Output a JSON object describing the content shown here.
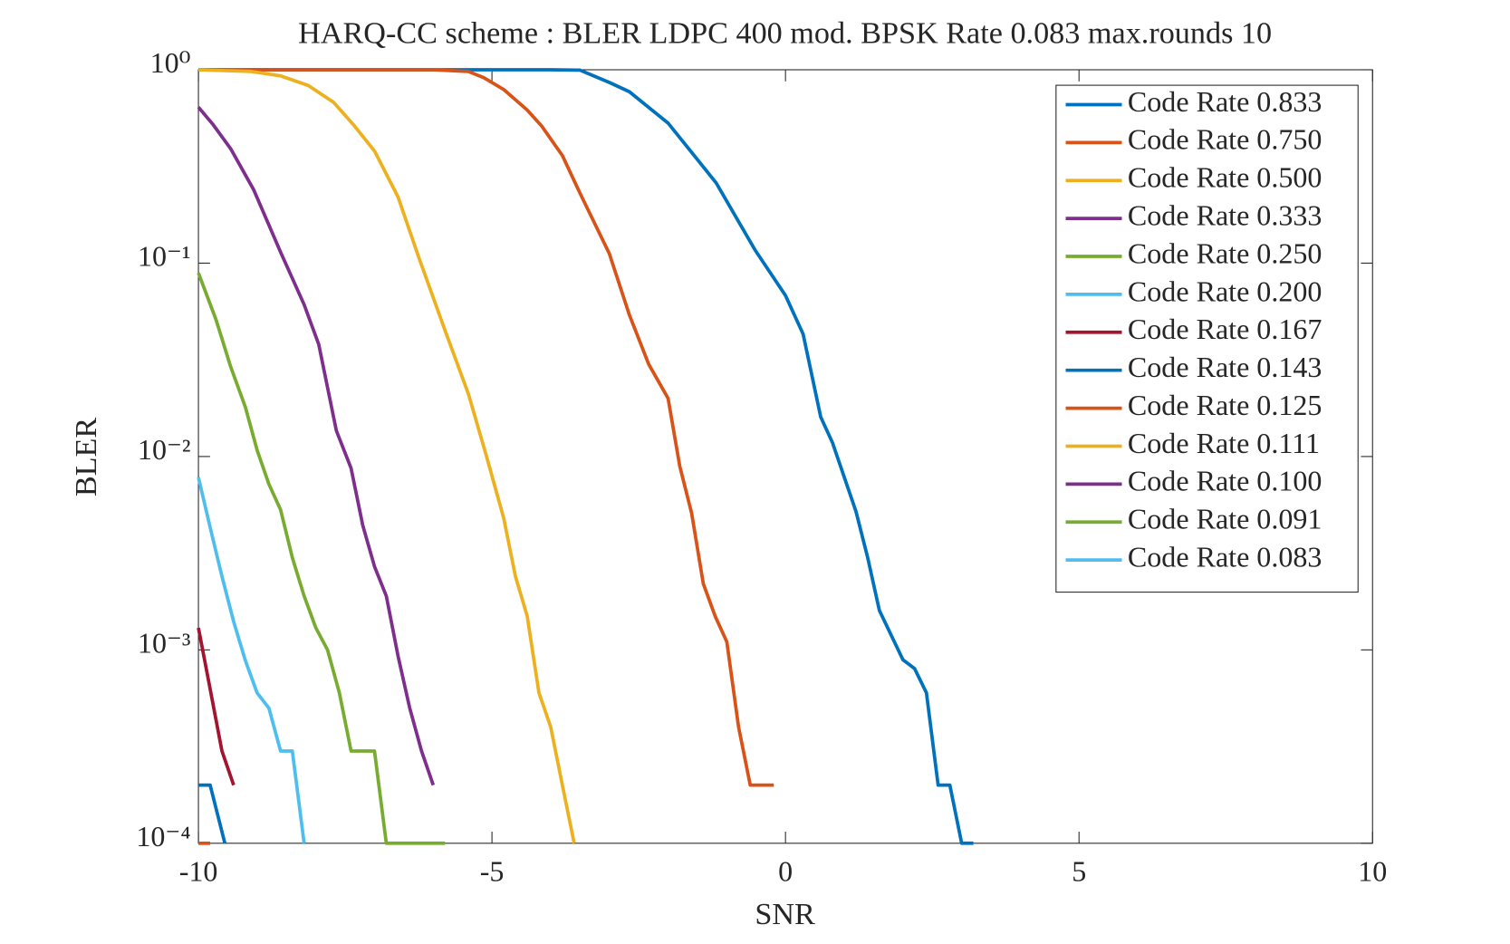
{
  "chart_data": {
    "type": "line",
    "title": "HARQ-CC scheme : BLER LDPC 400 mod. BPSK Rate 0.083 max.rounds 10",
    "xlabel": "SNR",
    "ylabel": "BLER",
    "xlim": [
      -10,
      10
    ],
    "xticks": [
      -10,
      -5,
      0,
      5,
      10
    ],
    "ylim": [
      0.0001,
      1
    ],
    "yscale": "log",
    "yticks": [
      {
        "value": 1,
        "label": "10⁰"
      },
      {
        "value": 0.1,
        "label": "10⁻¹"
      },
      {
        "value": 0.01,
        "label": "10⁻²"
      },
      {
        "value": 0.001,
        "label": "10⁻³"
      },
      {
        "value": 0.0001,
        "label": "10⁻⁴"
      }
    ],
    "legend": "upper right",
    "series": [
      {
        "name": "Code Rate 0.833",
        "color": "#0072bd",
        "x": [
          -10,
          -4,
          -3.5,
          -3.0,
          -2.66,
          -2.0,
          -1.18,
          -0.52,
          0,
          0.3,
          0.6,
          0.8,
          1.2,
          1.4,
          1.6,
          2.0,
          2.2,
          2.4,
          2.6,
          2.8,
          3.0,
          3.2
        ],
        "values": [
          1,
          1,
          0.995,
          0.86,
          0.77,
          0.53,
          0.26,
          0.117,
          0.068,
          0.043,
          0.016,
          0.0118,
          0.0052,
          0.003,
          0.0016,
          0.00089,
          0.0008,
          0.0006,
          0.0002,
          0.0002,
          0.0001,
          0.0001
        ]
      },
      {
        "name": "Code Rate 0.750",
        "color": "#d95319",
        "x": [
          -10,
          -6,
          -5.4,
          -5.14,
          -4.8,
          -4.4,
          -4.15,
          -3.8,
          -3.5,
          -3.0,
          -2.66,
          -2.33,
          -2.0,
          -1.8,
          -1.6,
          -1.4,
          -1.2,
          -1.0,
          -0.8,
          -0.6,
          -0.2
        ],
        "values": [
          1,
          1,
          0.98,
          0.91,
          0.79,
          0.62,
          0.51,
          0.36,
          0.23,
          0.112,
          0.054,
          0.03,
          0.02,
          0.0089,
          0.0051,
          0.0022,
          0.0015,
          0.0011,
          0.0004,
          0.0002,
          0.0002
        ]
      },
      {
        "name": "Code Rate 0.500",
        "color": "#edb120",
        "x": [
          -10,
          -9.1,
          -8.6,
          -8.13,
          -7.7,
          -7.36,
          -7.0,
          -6.6,
          -6.25,
          -5.8,
          -5.4,
          -5.1,
          -4.8,
          -4.6,
          -4.4,
          -4.2,
          -4.0,
          -3.8,
          -3.6
        ],
        "values": [
          1,
          0.98,
          0.93,
          0.83,
          0.68,
          0.52,
          0.38,
          0.22,
          0.108,
          0.045,
          0.021,
          0.0102,
          0.0048,
          0.0024,
          0.0015,
          0.0006,
          0.0004,
          0.0002,
          0.0001
        ]
      },
      {
        "name": "Code Rate 0.333",
        "color": "#7e2f8e",
        "x": [
          -10,
          -9.75,
          -9.45,
          -9.06,
          -8.6,
          -8.2,
          -7.95,
          -7.65,
          -7.4,
          -7.2,
          -7.0,
          -6.8,
          -6.6,
          -6.4,
          -6.2,
          -6.0
        ],
        "values": [
          0.64,
          0.52,
          0.39,
          0.24,
          0.114,
          0.061,
          0.038,
          0.0136,
          0.0087,
          0.0044,
          0.0027,
          0.0019,
          0.00093,
          0.0005,
          0.0003,
          0.0002
        ]
      },
      {
        "name": "Code Rate 0.250",
        "color": "#77ac30",
        "x": [
          -10,
          -9.7,
          -9.45,
          -9.2,
          -9.0,
          -8.8,
          -8.6,
          -8.4,
          -8.2,
          -8.0,
          -7.8,
          -7.6,
          -7.4,
          -7.0,
          -6.8,
          -5.8
        ],
        "values": [
          0.089,
          0.051,
          0.029,
          0.018,
          0.0108,
          0.0072,
          0.0053,
          0.003,
          0.0019,
          0.0013,
          0.001,
          0.0006,
          0.0003,
          0.0003,
          0.0001,
          0.0001
        ]
      },
      {
        "name": "Code Rate 0.200",
        "color": "#4dbeee",
        "x": [
          -10,
          -9.8,
          -9.6,
          -9.4,
          -9.2,
          -9.0,
          -8.8,
          -8.6,
          -8.4,
          -8.2
        ],
        "values": [
          0.0078,
          0.0043,
          0.0024,
          0.0014,
          0.00088,
          0.0006,
          0.0005,
          0.0003,
          0.0003,
          0.0001
        ]
      },
      {
        "name": "Code Rate 0.167",
        "color": "#a2142f",
        "x": [
          -10,
          -9.83,
          -9.6,
          -9.4
        ],
        "values": [
          0.0013,
          0.0007,
          0.0003,
          0.0002
        ]
      },
      {
        "name": "Code Rate 0.143",
        "color": "#0072bd",
        "x": [
          -10,
          -9.8,
          -9.55
        ],
        "values": [
          0.0002,
          0.0002,
          0.0001
        ]
      },
      {
        "name": "Code Rate 0.125",
        "color": "#d95319",
        "x": [
          -10,
          -9.8
        ],
        "values": [
          0.0001,
          0.0001
        ]
      },
      {
        "name": "Code Rate 0.111",
        "color": "#edb120",
        "x": [],
        "values": []
      },
      {
        "name": "Code Rate 0.100",
        "color": "#7e2f8e",
        "x": [],
        "values": []
      },
      {
        "name": "Code Rate 0.091",
        "color": "#77ac30",
        "x": [],
        "values": []
      },
      {
        "name": "Code Rate 0.083",
        "color": "#4dbeee",
        "x": [],
        "values": []
      }
    ]
  }
}
